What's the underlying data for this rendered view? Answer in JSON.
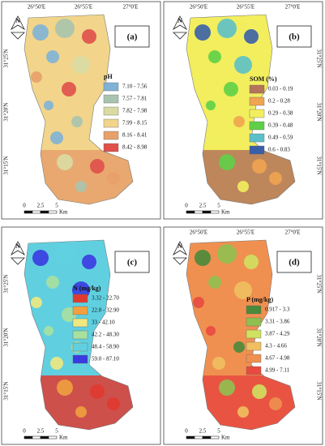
{
  "coords": {
    "lon": [
      "26°50'E",
      "26°55'E",
      "27°0'E"
    ],
    "lat": [
      "31°25'N",
      "31°20'N",
      "31°15'N"
    ]
  },
  "north": "N",
  "scale": {
    "ticks": [
      "0",
      "2.5",
      "5"
    ],
    "unit": "Km"
  },
  "panels": [
    {
      "label": "(a)",
      "legend_title": "pH",
      "lon_side": "top",
      "lat_side": "left",
      "items": [
        {
          "label": "7.10 - 7.56",
          "color": "#7fb2d6"
        },
        {
          "label": "7.57 - 7.81",
          "color": "#a9c4ae"
        },
        {
          "label": "7.82 - 7.98",
          "color": "#d9dba3"
        },
        {
          "label": "7.99 - 8.15",
          "color": "#f2d58a"
        },
        {
          "label": "8.16 - 8.41",
          "color": "#e8a06a"
        },
        {
          "label": "8.42 - 8.98",
          "color": "#e0504a"
        }
      ]
    },
    {
      "label": "(b)",
      "legend_title": "SOM (%)",
      "lon_side": "top",
      "lat_side": "right",
      "items": [
        {
          "label": "0.03 - 0.19",
          "color": "#b5735a"
        },
        {
          "label": "0.2 - 0.28",
          "color": "#f0a450"
        },
        {
          "label": "0.29 - 0.38",
          "color": "#f2ee5e"
        },
        {
          "label": "0.39 - 0.48",
          "color": "#5ed048"
        },
        {
          "label": "0.49 - 0.59",
          "color": "#5cc0c8"
        },
        {
          "label": "0.6 - 0.83",
          "color": "#3a5fa8"
        }
      ]
    },
    {
      "label": "(c)",
      "legend_title": "N (mg/kg)",
      "lon_side": null,
      "lat_side": "left",
      "items": [
        {
          "label": "3.32 - 22.70",
          "color": "#e03a30"
        },
        {
          "label": "22.8 - 32.90",
          "color": "#f0a040"
        },
        {
          "label": "33 - 42.10",
          "color": "#f0e880"
        },
        {
          "label": "42.2 - 48.30",
          "color": "#a8e0a0"
        },
        {
          "label": "48.4 - 58.90",
          "color": "#60d0e0"
        },
        {
          "label": "59.0 - 87.10",
          "color": "#3a3ae0"
        }
      ]
    },
    {
      "label": "(d)",
      "legend_title": "P (mg/kg)",
      "lon_side": "top",
      "lat_side": "right",
      "items": [
        {
          "label": "0.917 - 3.3",
          "color": "#4a8a3a"
        },
        {
          "label": "3.31 - 3.86",
          "color": "#90c050"
        },
        {
          "label": "3.87 - 4.29",
          "color": "#d0e060"
        },
        {
          "label": "4.3 - 4.66",
          "color": "#f0c060"
        },
        {
          "label": "4.67 - 4.98",
          "color": "#f09050"
        },
        {
          "label": "4.99 - 7.11",
          "color": "#e84a40"
        }
      ]
    }
  ]
}
